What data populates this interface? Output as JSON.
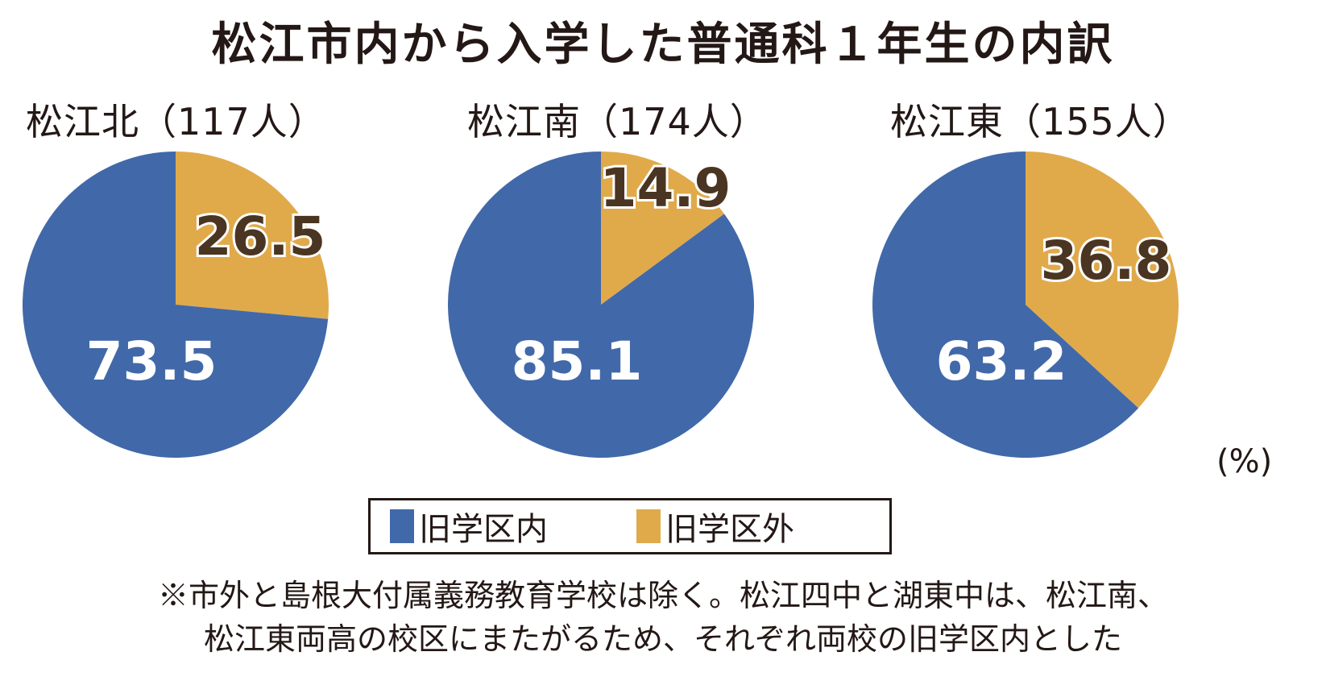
{
  "title": "松江市内から入学した普通科１年生の内訳",
  "unit_label": "(%)",
  "colors": {
    "inside": "#4169a9",
    "outside": "#e0aa4b",
    "text_dark": "#4a3522",
    "text_light": "#ffffff"
  },
  "legend": [
    {
      "label": "旧学区内",
      "color": "#4169a9"
    },
    {
      "label": "旧学区外",
      "color": "#e0aa4b"
    }
  ],
  "note": {
    "line1": "※市外と島根大付属義務教育学校は除く。松江四中と湖東中は、松江南、",
    "line2": "松江東両高の校区にまたがるため、それぞれ両校の旧学区内とした"
  },
  "chart_data": [
    {
      "type": "pie",
      "title": "松江北（117人）",
      "slices": [
        {
          "name": "旧学区外",
          "value": 26.5,
          "label": "26.5"
        },
        {
          "name": "旧学区内",
          "value": 73.5,
          "label": "73.5"
        }
      ]
    },
    {
      "type": "pie",
      "title": "松江南（174人）",
      "slices": [
        {
          "name": "旧学区外",
          "value": 14.9,
          "label": "14.9"
        },
        {
          "name": "旧学区内",
          "value": 85.1,
          "label": "85.1"
        }
      ]
    },
    {
      "type": "pie",
      "title": "松江東（155人）",
      "slices": [
        {
          "name": "旧学区外",
          "value": 36.8,
          "label": "36.8"
        },
        {
          "name": "旧学区内",
          "value": 63.2,
          "label": "63.2"
        }
      ]
    }
  ]
}
